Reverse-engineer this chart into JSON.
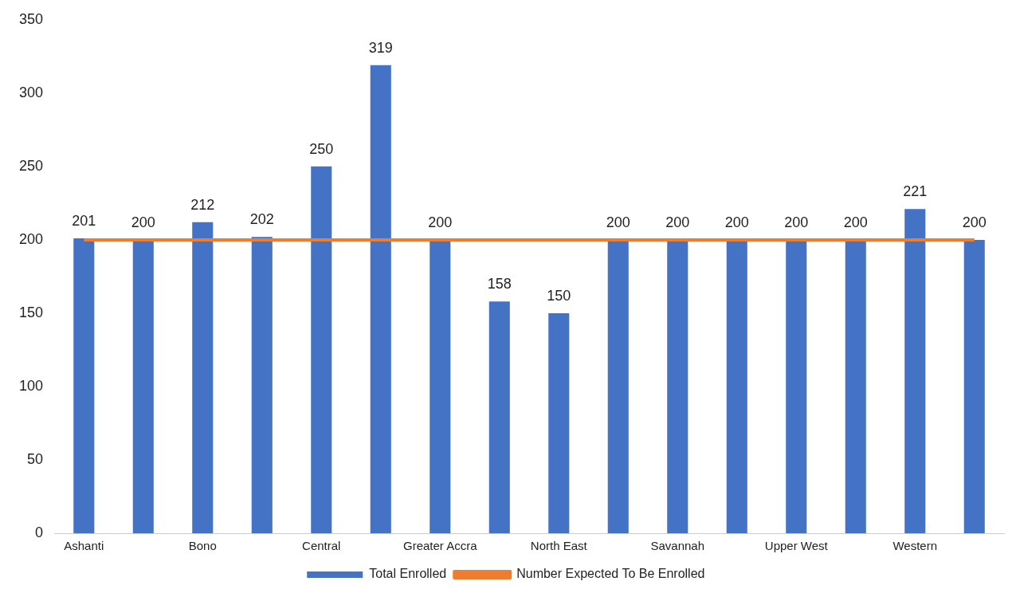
{
  "chart_data": {
    "type": "bar",
    "categories": [
      "Ashanti",
      null,
      "Bono",
      null,
      "Central",
      null,
      "Greater Accra",
      null,
      "North East",
      null,
      "Savannah",
      null,
      "Upper West",
      null,
      "Western",
      null
    ],
    "series": [
      {
        "name": "Total Enrolled",
        "color": "#4472c4",
        "values": [
          201,
          200,
          212,
          202,
          250,
          319,
          200,
          158,
          150,
          200,
          200,
          200,
          200,
          200,
          221,
          200
        ],
        "value_labels": [
          "201",
          "200",
          "212",
          "202",
          "250",
          "319",
          "200",
          "158",
          "150",
          "200",
          "200",
          "200",
          "200",
          "200",
          "221",
          "200"
        ]
      },
      {
        "name": "Number Expected To Be Enrolled",
        "type": "line",
        "color": "#ed7d31",
        "values": [
          200,
          200,
          200,
          200,
          200,
          200,
          200,
          200,
          200,
          200,
          200,
          200,
          200,
          200,
          200,
          200
        ]
      }
    ],
    "ylim": [
      0,
      350
    ],
    "yticks": [
      0,
      50,
      100,
      150,
      200,
      250,
      300,
      350
    ],
    "grid": false,
    "legend": "bottom",
    "marker": "none"
  }
}
